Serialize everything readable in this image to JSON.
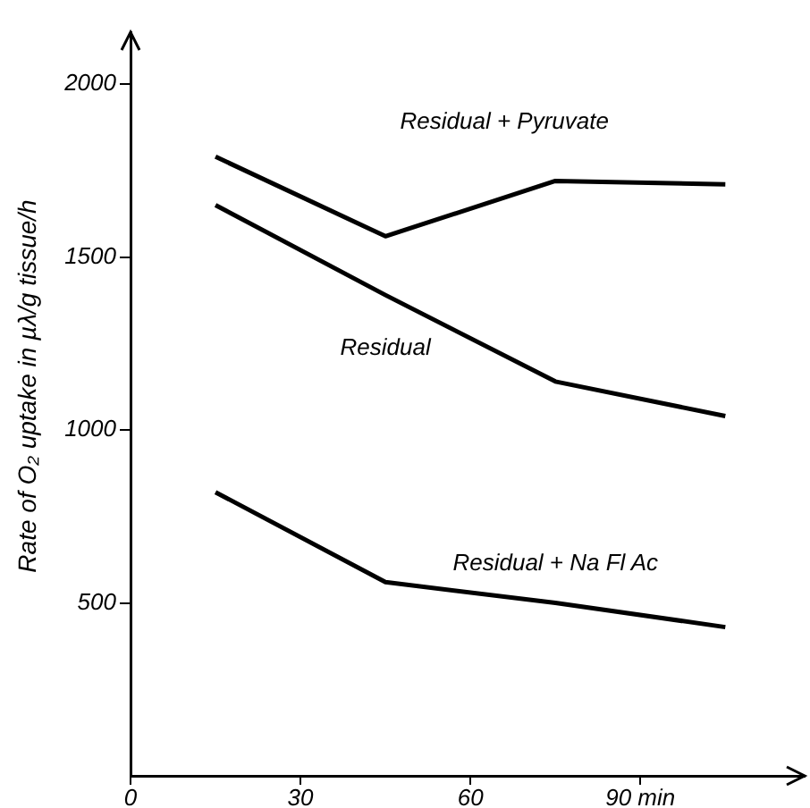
{
  "chart_data": {
    "type": "line",
    "ylabel": "Rate of O₂ uptake in µλ/g tissue/h",
    "x": [
      15,
      45,
      75,
      105
    ],
    "series": [
      {
        "name": "Residual + Pyruvate",
        "color": "#000000",
        "values": [
          1790,
          1560,
          1720,
          1710
        ]
      },
      {
        "name": "Residual",
        "color": "#000000",
        "values": [
          1650,
          1390,
          1140,
          1040
        ]
      },
      {
        "name": "Residual + Na Fl Ac",
        "color": "#000000",
        "values": [
          820,
          560,
          500,
          430
        ]
      }
    ],
    "xlim": [
      0,
      119
    ],
    "xticks": [
      0,
      30,
      60,
      {
        "value": 90,
        "label": "90 min"
      }
    ],
    "ylim": [
      0,
      2150
    ],
    "yticks": [
      500,
      1000,
      1500,
      2000
    ],
    "grid": false,
    "legend": false,
    "marker": "none",
    "line_style": "solid"
  }
}
